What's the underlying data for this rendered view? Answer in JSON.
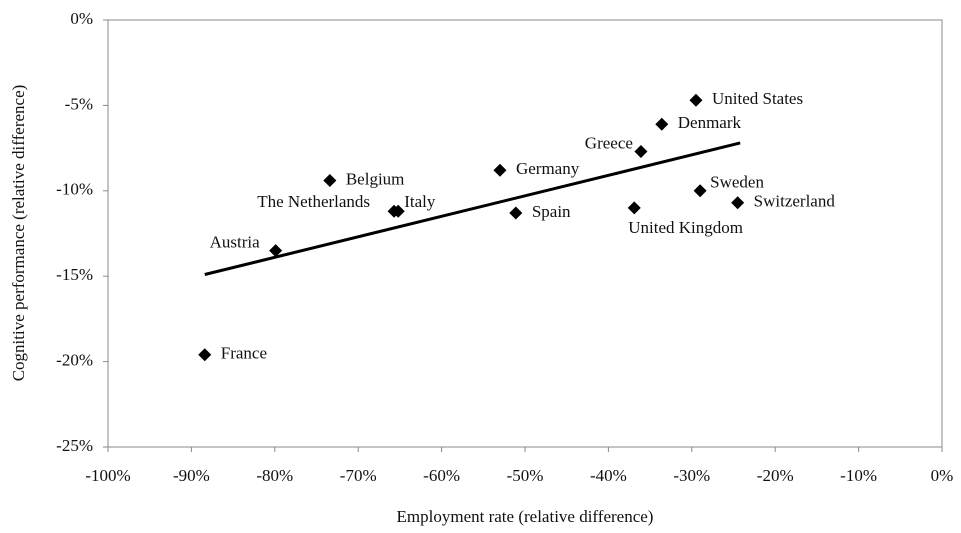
{
  "chart_data": {
    "type": "scatter",
    "xlabel": "Employment rate (relative difference)",
    "ylabel": "Cognitive performance (relative difference)",
    "labels": [
      "United States",
      "Denmark",
      "Greece",
      "Germany",
      "Belgium",
      "Sweden",
      "Switzerland",
      "United Kingdom",
      "Spain",
      "The Netherlands",
      "Italy",
      "Austria",
      "France"
    ],
    "x": [
      -29.5,
      -33.6,
      -36.1,
      -53.0,
      -73.4,
      -29.0,
      -24.5,
      -36.9,
      -51.1,
      -65.7,
      -65.2,
      -79.9,
      -88.4
    ],
    "y": [
      -4.7,
      -6.1,
      -7.7,
      -8.8,
      -9.4,
      -10.0,
      -10.7,
      -11.0,
      -11.3,
      -11.2,
      -11.2,
      -13.5,
      -19.6
    ],
    "color": "#000000",
    "trendline": {
      "x": [
        -88.4,
        -24.2
      ],
      "y": [
        -14.9,
        -7.2
      ]
    },
    "xlim": [
      -100,
      0
    ],
    "ylim": [
      -25,
      0
    ],
    "xticks": [
      {
        "value": -100,
        "label": "-100%"
      },
      {
        "value": -90,
        "label": "-90%"
      },
      {
        "value": -80,
        "label": "-80%"
      },
      {
        "value": -70,
        "label": "-70%"
      },
      {
        "value": -60,
        "label": "-60%"
      },
      {
        "value": -50,
        "label": "-50%"
      },
      {
        "value": -40,
        "label": "-40%"
      },
      {
        "value": -30,
        "label": "-30%"
      },
      {
        "value": -20,
        "label": "-20%"
      },
      {
        "value": -10,
        "label": "-10%"
      },
      {
        "value": 0,
        "label": "0%"
      }
    ],
    "yticks": [
      {
        "value": -25,
        "label": "-25%"
      },
      {
        "value": -20,
        "label": "-20%"
      },
      {
        "value": -15,
        "label": "-15%"
      },
      {
        "value": -10,
        "label": "-10%"
      },
      {
        "value": -5,
        "label": "-5%"
      },
      {
        "value": 0,
        "label": "0%"
      }
    ]
  }
}
